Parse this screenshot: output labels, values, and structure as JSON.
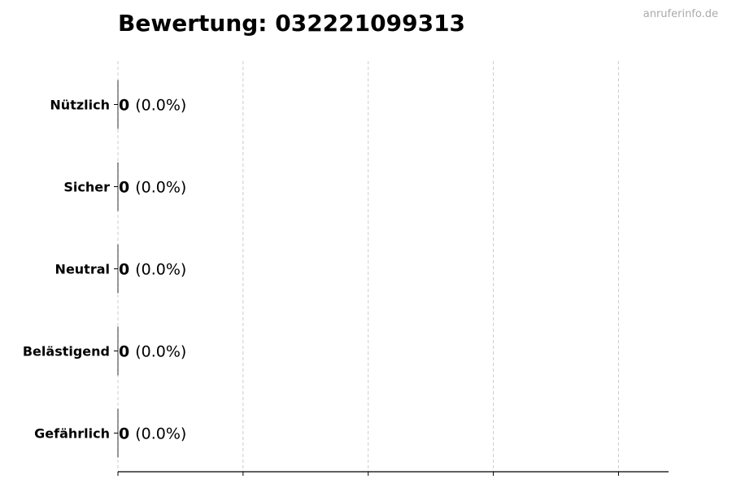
{
  "chart_data": {
    "type": "bar",
    "orientation": "horizontal",
    "title": "Bewertung: 032221099313",
    "categories": [
      "Nützlich",
      "Sicher",
      "Neutral",
      "Belästigend",
      "Gefährlich"
    ],
    "values": [
      0,
      0,
      0,
      0,
      0
    ],
    "data_labels": [
      {
        "count": "0",
        "percent": "(0.0%)"
      },
      {
        "count": "0",
        "percent": "(0.0%)"
      },
      {
        "count": "0",
        "percent": "(0.0%)"
      },
      {
        "count": "0",
        "percent": "(0.0%)"
      },
      {
        "count": "0",
        "percent": "(0.0%)"
      }
    ],
    "xlim": [
      0,
      4.4
    ],
    "xticks": [
      0,
      1,
      2,
      3,
      4
    ],
    "xtick_labels_shown": false,
    "grid": "x dashed",
    "xlabel": "",
    "ylabel": "",
    "colors": {
      "bar_edge": "#000000",
      "grid": "#cccccc"
    }
  },
  "watermark": "anruferinfo.de"
}
